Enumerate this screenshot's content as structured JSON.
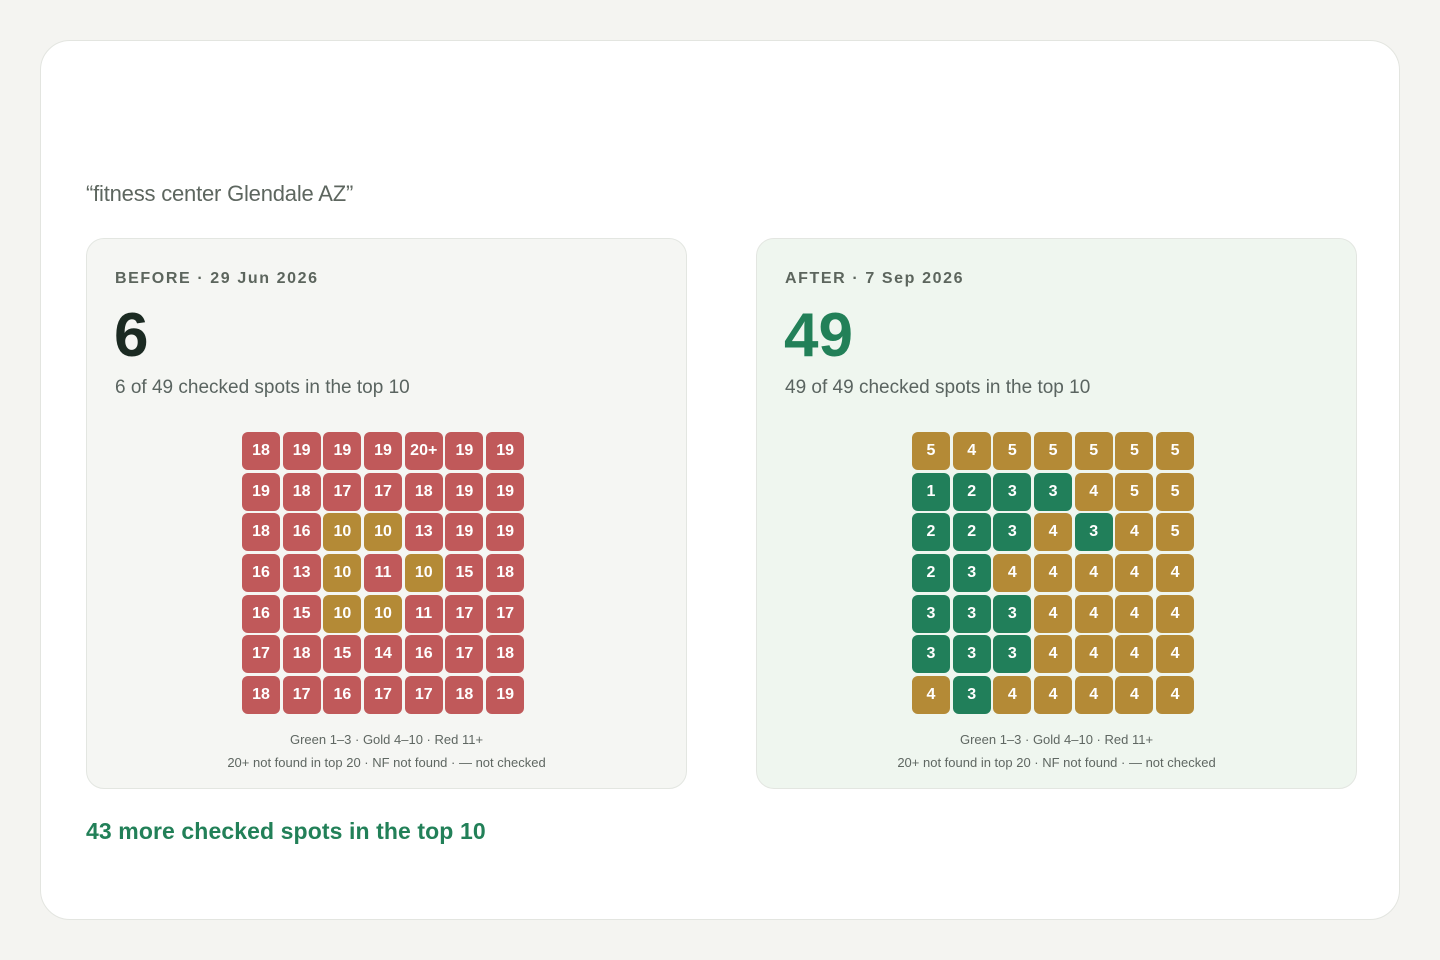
{
  "query": "“fitness center Glendale AZ”",
  "colors": {
    "green": "#217f5a",
    "gold": "#b48a36",
    "red": "#c0595a"
  },
  "before": {
    "label": "BEFORE · 29 Jun 2026",
    "count": "6",
    "description": "6 of 49 checked spots in the top 10",
    "grid": [
      [
        "18",
        "19",
        "19",
        "19",
        "20+",
        "19",
        "19"
      ],
      [
        "19",
        "18",
        "17",
        "17",
        "18",
        "19",
        "19"
      ],
      [
        "18",
        "16",
        "10",
        "10",
        "13",
        "19",
        "19"
      ],
      [
        "16",
        "13",
        "10",
        "11",
        "10",
        "15",
        "18"
      ],
      [
        "16",
        "15",
        "10",
        "10",
        "11",
        "17",
        "17"
      ],
      [
        "17",
        "18",
        "15",
        "14",
        "16",
        "17",
        "18"
      ],
      [
        "18",
        "17",
        "16",
        "17",
        "17",
        "18",
        "19"
      ]
    ],
    "legend_line1": "Green 1–3 · Gold 4–10 · Red 11+",
    "legend_line2": "20+ not found in top 20 · NF not found · — not checked"
  },
  "after": {
    "label": "AFTER · 7 Sep 2026",
    "count": "49",
    "description": "49 of 49 checked spots in the top 10",
    "grid": [
      [
        "5",
        "4",
        "5",
        "5",
        "5",
        "5",
        "5"
      ],
      [
        "1",
        "2",
        "3",
        "3",
        "4",
        "5",
        "5"
      ],
      [
        "2",
        "2",
        "3",
        "4",
        "3",
        "4",
        "5"
      ],
      [
        "2",
        "3",
        "4",
        "4",
        "4",
        "4",
        "4"
      ],
      [
        "3",
        "3",
        "3",
        "4",
        "4",
        "4",
        "4"
      ],
      [
        "3",
        "3",
        "3",
        "4",
        "4",
        "4",
        "4"
      ],
      [
        "4",
        "3",
        "4",
        "4",
        "4",
        "4",
        "4"
      ]
    ],
    "legend_line1": "Green 1–3 · Gold 4–10 · Red 11+",
    "legend_line2": "20+ not found in top 20 · NF not found · — not checked"
  },
  "summary": "43 more checked spots in the top 10"
}
